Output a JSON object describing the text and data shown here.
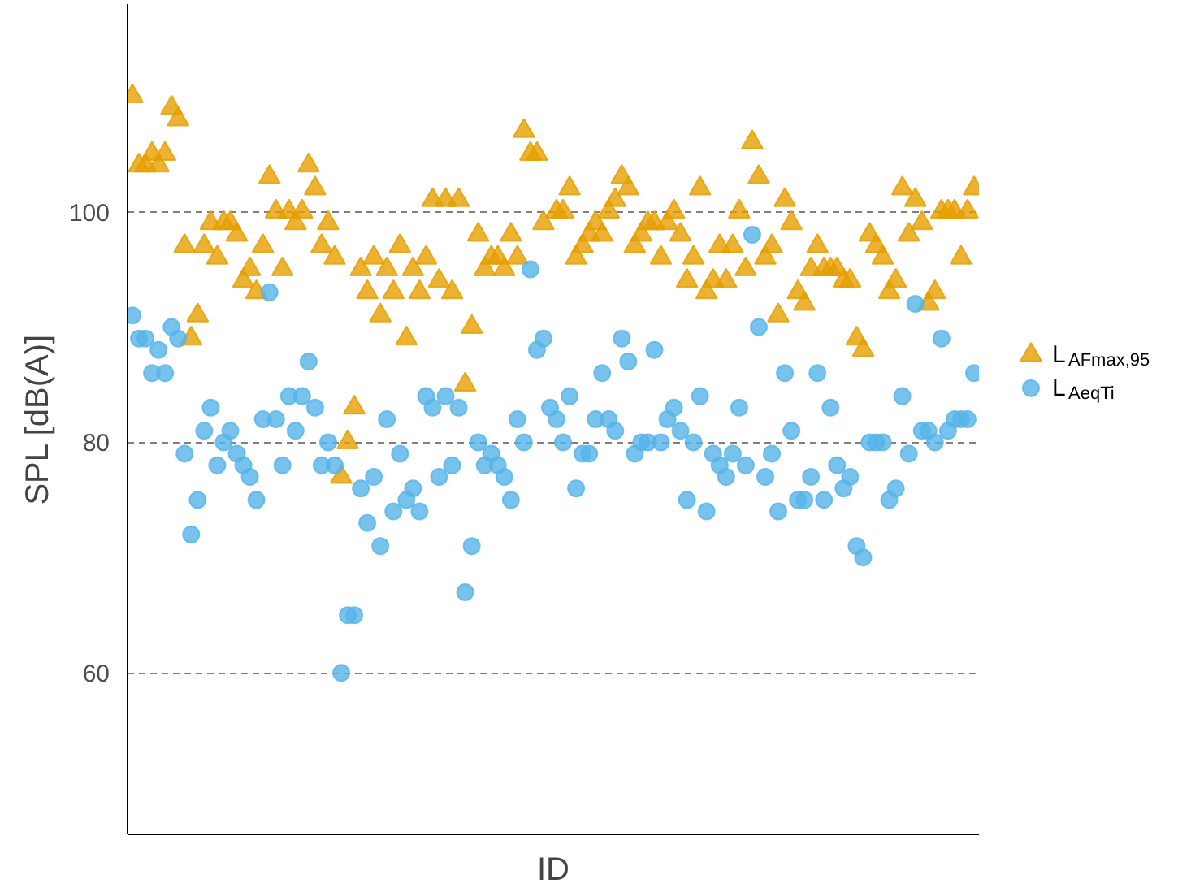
{
  "chart_data": {
    "type": "scatter",
    "xlabel": "ID",
    "ylabel": "SPL [dB(A)]",
    "categories": [
      null,
      null,
      null,
      null,
      null,
      null,
      null,
      null,
      null,
      null,
      null,
      null,
      null,
      null,
      null,
      null,
      null,
      null,
      null,
      null,
      null,
      null,
      null,
      null,
      null,
      null,
      null,
      null,
      null,
      null,
      null,
      null,
      null,
      null,
      null,
      null,
      null,
      null,
      null,
      null,
      null,
      null,
      null,
      null,
      null,
      null,
      null,
      null,
      null,
      null,
      null,
      null,
      null,
      null,
      null,
      null,
      null,
      null,
      null,
      null,
      null,
      null,
      null,
      null,
      null,
      null,
      null,
      null,
      null,
      null,
      null,
      null,
      null,
      null,
      null,
      null,
      null,
      null,
      null,
      null,
      null,
      null,
      null,
      null,
      null,
      null,
      null,
      null,
      null,
      null,
      null,
      null,
      null,
      null,
      null,
      null,
      null,
      null,
      null,
      null,
      null,
      null,
      null,
      null,
      null,
      null,
      null,
      null,
      null,
      null,
      null,
      null,
      null,
      null,
      null,
      null,
      null,
      null,
      null,
      null,
      null,
      null,
      null,
      null,
      null,
      null,
      null,
      null,
      null,
      null
    ],
    "series": [
      {
        "name": "L$_{AFmax,95}$",
        "color": "#e69f00",
        "marker": "triangle",
        "values": [
          110,
          104,
          104,
          105,
          104,
          105,
          109,
          108,
          97,
          89,
          91,
          97,
          99,
          96,
          99,
          99,
          98,
          94,
          95,
          93,
          97,
          103,
          100,
          95,
          100,
          99,
          100,
          104,
          102,
          97,
          99,
          96,
          77,
          80,
          83,
          95,
          93,
          96,
          91,
          95,
          93,
          97,
          89,
          95,
          93,
          96,
          101,
          94,
          101,
          93,
          101,
          85,
          90,
          98,
          95,
          96,
          96,
          95,
          98,
          96,
          107,
          105,
          105,
          99,
          null,
          100,
          100,
          102,
          96,
          97,
          98,
          99,
          98,
          100,
          101,
          103,
          102,
          97,
          98,
          99,
          99,
          96,
          99,
          100,
          98,
          94,
          96,
          102,
          93,
          94,
          97,
          94,
          97,
          100,
          95,
          106,
          103,
          96,
          97,
          91,
          101,
          99,
          93,
          92,
          95,
          97,
          95,
          95,
          95,
          94,
          94,
          89,
          88,
          98,
          97,
          96,
          93,
          94,
          102,
          98,
          101,
          99,
          92,
          93,
          100,
          100,
          100,
          96,
          100,
          102
        ]
      },
      {
        "name": "L$_{AeqTi}$",
        "color": "#56b4e9",
        "marker": "circle",
        "values": [
          91,
          89,
          89,
          86,
          88,
          86,
          90,
          89,
          79,
          72,
          75,
          81,
          83,
          78,
          80,
          81,
          79,
          78,
          77,
          75,
          82,
          93,
          82,
          78,
          84,
          81,
          84,
          87,
          83,
          78,
          80,
          78,
          60,
          65,
          65,
          76,
          73,
          77,
          71,
          82,
          74,
          79,
          75,
          76,
          74,
          84,
          83,
          77,
          84,
          78,
          83,
          67,
          71,
          80,
          78,
          79,
          78,
          77,
          75,
          82,
          80,
          95,
          88,
          89,
          83,
          82,
          80,
          84,
          76,
          79,
          79,
          82,
          86,
          82,
          81,
          89,
          87,
          79,
          80,
          80,
          88,
          80,
          82,
          83,
          81,
          75,
          80,
          84,
          74,
          79,
          78,
          77,
          79,
          83,
          78,
          98,
          90,
          77,
          79,
          74,
          86,
          81,
          75,
          75,
          77,
          86,
          75,
          83,
          78,
          76,
          77,
          71,
          70,
          80,
          80,
          80,
          75,
          76,
          84,
          79,
          92,
          81,
          81,
          80,
          89,
          81,
          82,
          82,
          82,
          86
        ]
      }
    ],
    "ylim": [
      46,
      118
    ],
    "yticks": [
      60,
      80,
      100
    ],
    "grid": "y",
    "legend": "right",
    "tick_labels": "y"
  }
}
